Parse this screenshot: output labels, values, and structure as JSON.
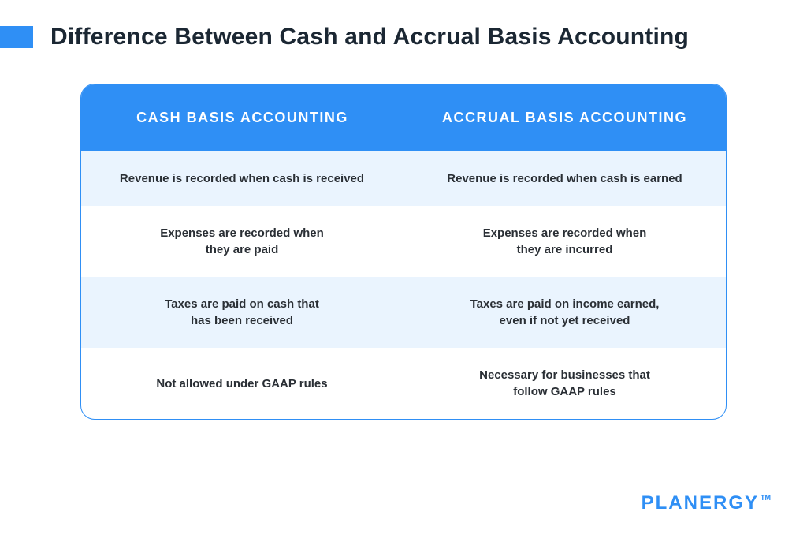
{
  "colors": {
    "accent": "#2f8ff5",
    "title": "#1b2733",
    "header_bg": "#2f8ff5",
    "table_border": "#2f8ff5",
    "row_alt_bg": "#eaf4fe",
    "body_text": "#2a2f35",
    "logo": "#2f8ff5"
  },
  "title": "Difference Between Cash and Accrual Basis Accounting",
  "table": {
    "columns": [
      "CASH BASIS ACCOUNTING",
      "ACCRUAL BASIS ACCOUNTING"
    ],
    "rows": [
      {
        "left": "Revenue is recorded when cash is received",
        "right": "Revenue is recorded when cash is earned",
        "alt": true
      },
      {
        "left": "Expenses are recorded when\nthey are paid",
        "right": "Expenses are recorded when\nthey are incurred",
        "alt": false
      },
      {
        "left": "Taxes are paid on cash that\nhas been received",
        "right": "Taxes are paid on income earned,\neven if not yet received",
        "alt": true
      },
      {
        "left": "Not allowed under GAAP rules",
        "right": "Necessary for businesses that\nfollow GAAP rules",
        "alt": false
      }
    ]
  },
  "logo": {
    "text": "PLANERGY",
    "tm": "TM"
  }
}
